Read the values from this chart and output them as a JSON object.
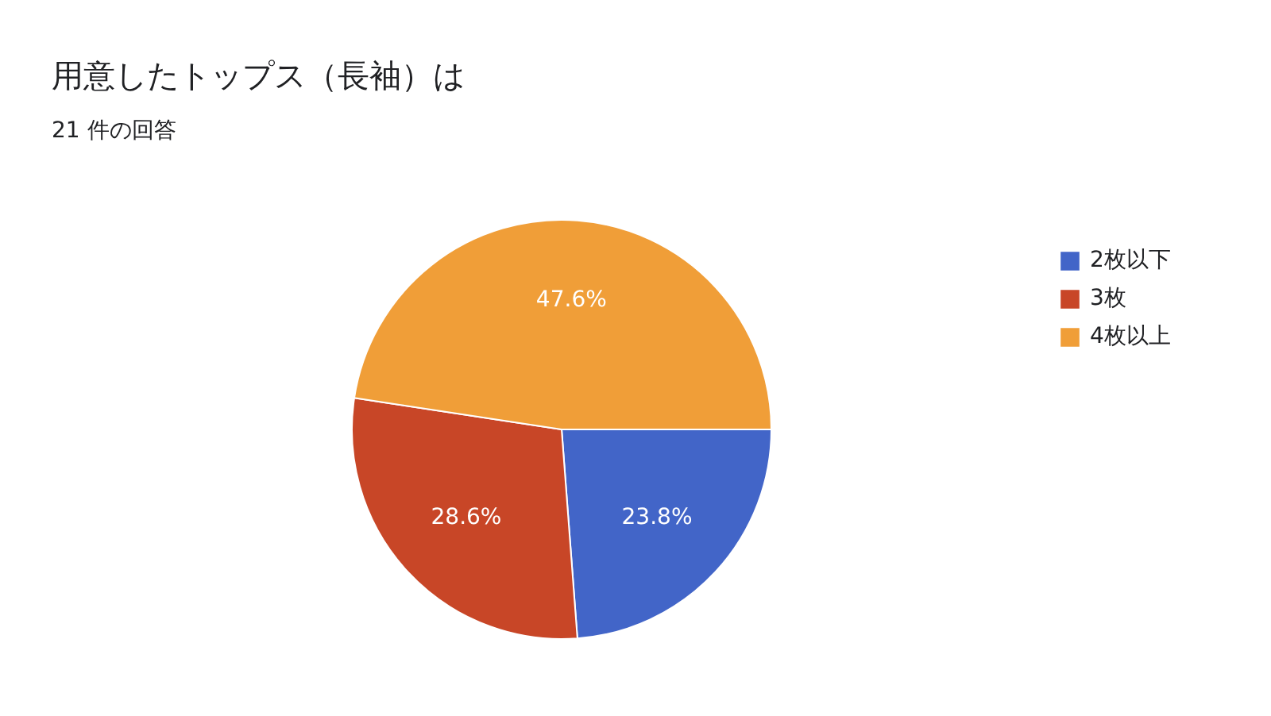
{
  "chart_data": {
    "type": "pie",
    "title": "用意したトップス（長袖）は",
    "subtitle": "21 件の回答",
    "categories": [
      "2枚以下",
      "3枚",
      "4枚以上"
    ],
    "values": [
      23.8,
      28.6,
      47.6
    ],
    "colors": [
      "#4265c8",
      "#c84627",
      "#f09e38"
    ],
    "value_labels": [
      "23.8%",
      "28.6%",
      "47.6%"
    ],
    "legend": "top right"
  }
}
